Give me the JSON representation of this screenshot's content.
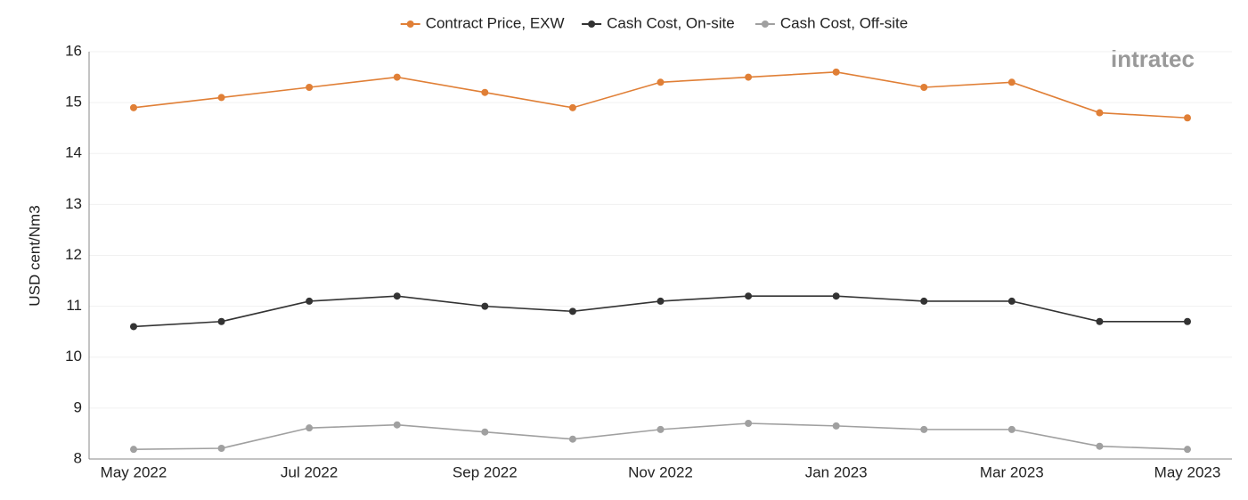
{
  "chart_data": {
    "type": "line",
    "y_label": "USD cent/Nm3",
    "logo": "intratec",
    "categories": [
      "May 2022",
      null,
      "Jul 2022",
      null,
      "Sep 2022",
      null,
      "Nov 2022",
      null,
      "Jan 2023",
      null,
      "Mar 2023",
      null,
      "May 2023"
    ],
    "series": [
      {
        "name": "Contract Price, EXW",
        "color": "#e07f36",
        "values": [
          14.9,
          15.1,
          15.3,
          15.5,
          15.2,
          14.9,
          15.4,
          15.5,
          15.6,
          15.3,
          15.4,
          14.8,
          14.7
        ]
      },
      {
        "name": "Cash Cost, On-site",
        "color": "#333333",
        "values": [
          10.6,
          10.7,
          11.1,
          11.2,
          11.0,
          10.9,
          11.1,
          11.2,
          11.2,
          11.1,
          11.1,
          10.7,
          10.7
        ]
      },
      {
        "name": "Cash Cost, Off-site",
        "color": "#a0a0a0",
        "values": [
          8.19,
          8.21,
          8.61,
          8.67,
          8.53,
          8.39,
          8.58,
          8.7,
          8.65,
          8.58,
          8.58,
          8.25,
          8.19
        ]
      }
    ],
    "ylim": [
      8,
      16
    ],
    "yticks": [
      8,
      9,
      10,
      11,
      12,
      13,
      14,
      15,
      16
    ],
    "grid": true,
    "legend": "top"
  }
}
